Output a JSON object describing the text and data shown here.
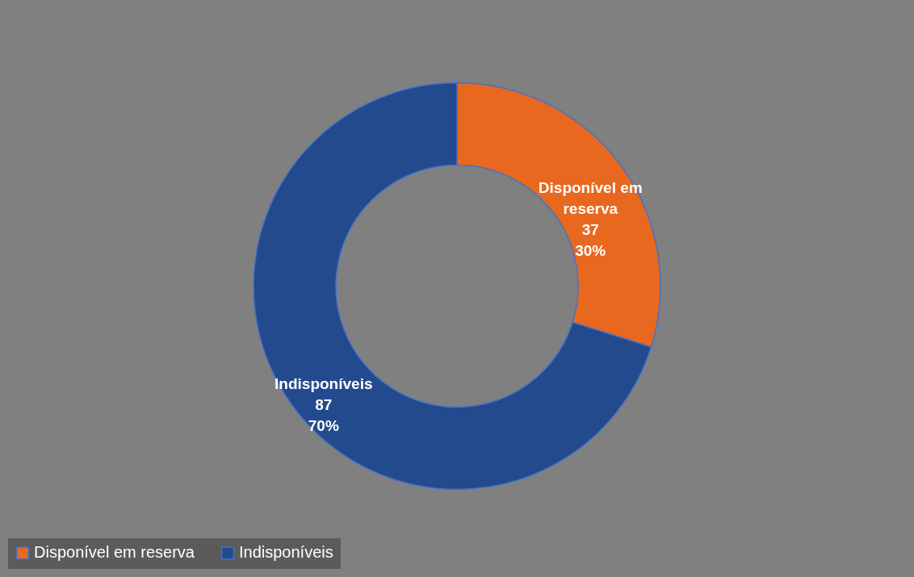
{
  "chart_data": {
    "type": "donut",
    "categories": [
      "Disponível em reserva",
      "Indisponíveis"
    ],
    "values": [
      37,
      87
    ],
    "colors": [
      "#e8681f",
      "#244a8e"
    ],
    "value_labels": [
      "37\n30%",
      "87\n70%"
    ],
    "legend": "bottom"
  }
}
